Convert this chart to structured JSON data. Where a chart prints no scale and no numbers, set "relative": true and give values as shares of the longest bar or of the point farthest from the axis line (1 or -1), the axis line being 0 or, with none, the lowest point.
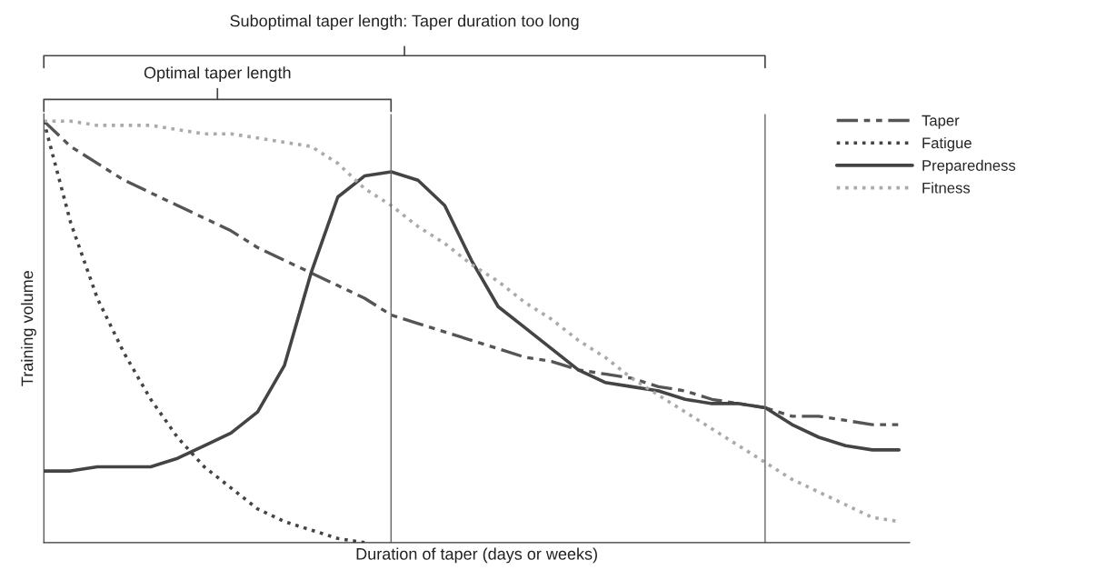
{
  "chart_data": {
    "type": "line",
    "relative": true,
    "xlabel": "Duration of taper (days or weeks)",
    "ylabel": "Training volume",
    "categories": [
      null,
      null,
      null,
      null,
      null,
      null,
      null,
      null,
      null,
      null,
      null,
      null,
      null,
      null,
      null,
      null,
      null,
      null,
      null,
      null,
      null,
      null,
      null,
      null,
      null,
      null,
      null,
      null,
      null,
      null,
      null,
      null,
      null
    ],
    "series": [
      {
        "name": "Taper",
        "color": "#555555",
        "line_style": "dashed",
        "values": [
          1.0,
          0.94,
          0.9,
          0.86,
          0.83,
          0.8,
          0.77,
          0.74,
          0.7,
          0.67,
          0.64,
          0.61,
          0.58,
          0.54,
          0.52,
          0.5,
          0.48,
          0.46,
          0.44,
          0.43,
          0.41,
          0.4,
          0.39,
          0.37,
          0.36,
          0.34,
          0.33,
          0.32,
          0.3,
          0.3,
          0.29,
          0.28,
          0.28
        ]
      },
      {
        "name": "Fatigue",
        "color": "#444444",
        "line_style": "dotted",
        "values": [
          1.0,
          0.76,
          0.58,
          0.45,
          0.34,
          0.25,
          0.18,
          0.13,
          0.08,
          0.05,
          0.03,
          0.01,
          0,
          null,
          null,
          null,
          null,
          null,
          null,
          null,
          null,
          null,
          null,
          null,
          null,
          null,
          null,
          null,
          null,
          null,
          null,
          null,
          null
        ]
      },
      {
        "name": "Preparedness",
        "color": "#444444",
        "line_style": "solid",
        "values": [
          0.17,
          0.17,
          0.18,
          0.18,
          0.18,
          0.2,
          0.23,
          0.26,
          0.31,
          0.42,
          0.64,
          0.82,
          0.87,
          0.88,
          0.86,
          0.8,
          0.67,
          0.56,
          0.51,
          0.46,
          0.41,
          0.38,
          0.37,
          0.36,
          0.34,
          0.33,
          0.33,
          0.32,
          0.28,
          0.25,
          0.23,
          0.22,
          0.22
        ]
      },
      {
        "name": "Fitness",
        "color": "#aaaaaa",
        "line_style": "dotted",
        "values": [
          1.0,
          1.0,
          0.99,
          0.99,
          0.99,
          0.98,
          0.97,
          0.97,
          0.96,
          0.95,
          0.94,
          0.9,
          0.84,
          0.8,
          0.75,
          0.71,
          0.66,
          0.62,
          0.57,
          0.53,
          0.48,
          0.44,
          0.39,
          0.35,
          0.31,
          0.27,
          0.23,
          0.19,
          0.15,
          0.12,
          0.09,
          0.06,
          0.05
        ]
      }
    ],
    "annotations": [
      "Suboptimal taper length: Taper duration too long",
      "Optimal taper length"
    ],
    "grid": false,
    "legend": "right",
    "tick_labels": false
  }
}
